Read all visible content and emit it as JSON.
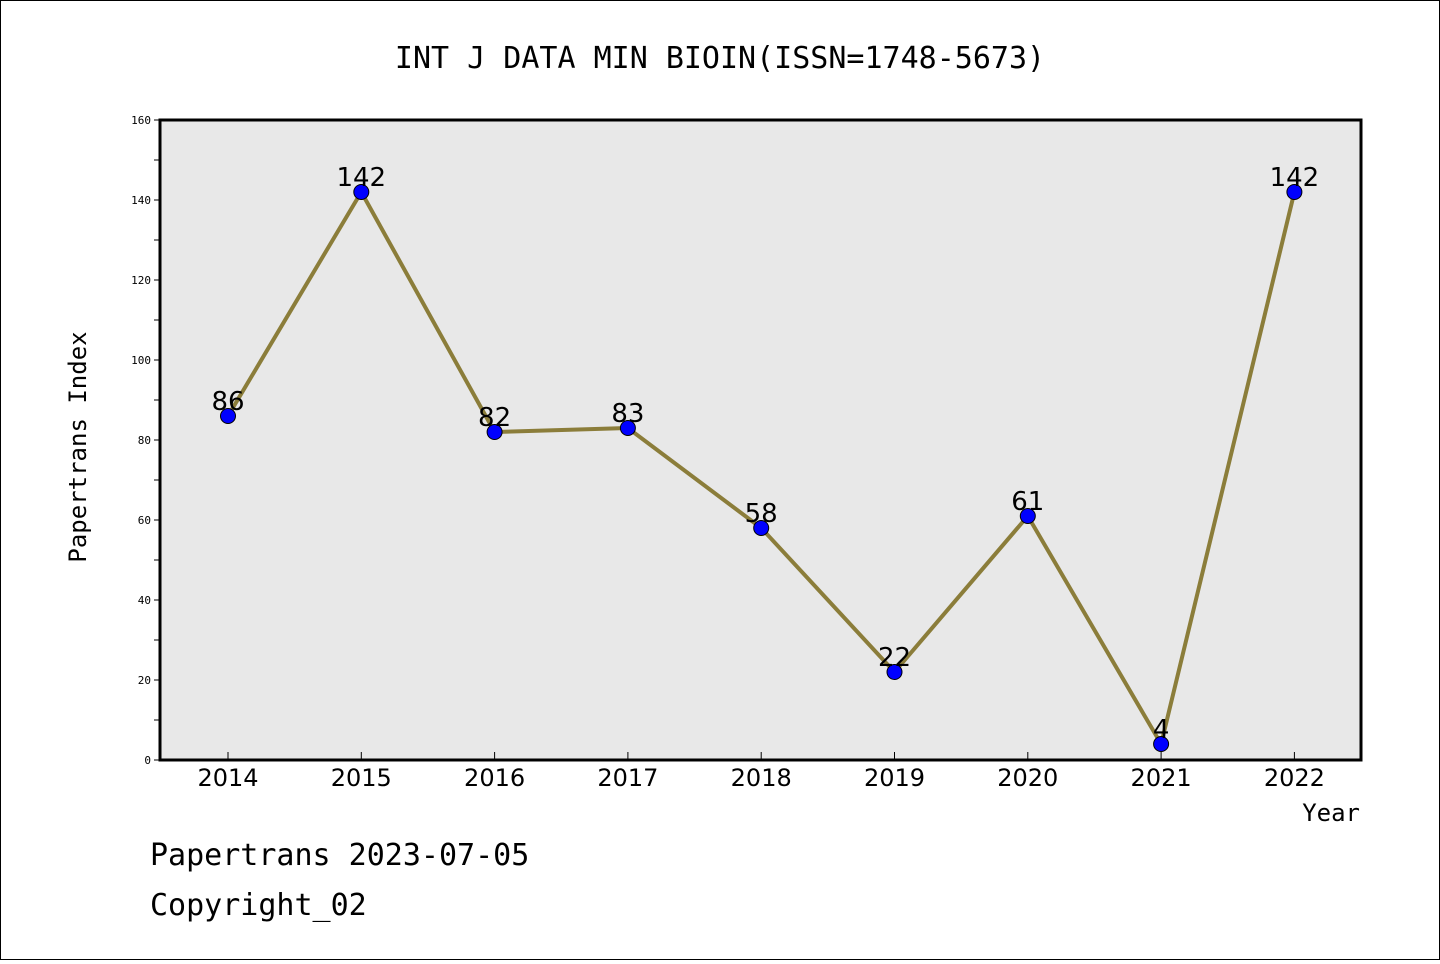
{
  "chart_data": {
    "type": "line",
    "title": "INT J DATA MIN BIOIN(ISSN=1748-5673)",
    "xlabel": "Year",
    "ylabel": "Papertrans Index",
    "categories": [
      "2014",
      "2015",
      "2016",
      "2017",
      "2018",
      "2019",
      "2020",
      "2021",
      "2022"
    ],
    "series": [
      {
        "values": [
          86,
          142,
          82,
          83,
          58,
          22,
          61,
          4,
          142
        ]
      }
    ],
    "data_labels": [
      "86",
      "142",
      "82",
      "83",
      "58",
      "22",
      "61",
      "4",
      "142"
    ],
    "ylim": [
      0,
      160
    ],
    "y_ticks": [
      "0",
      "20",
      "40",
      "60",
      "80",
      "100",
      "120",
      "140",
      "160"
    ],
    "grid": false,
    "line_color": "#8b7d3a",
    "marker_color": "#0000ff",
    "plot_background": "#e8e8e8"
  },
  "footer": {
    "date_text": "Papertrans 2023-07-05",
    "copyright_text": "Copyright_02"
  }
}
